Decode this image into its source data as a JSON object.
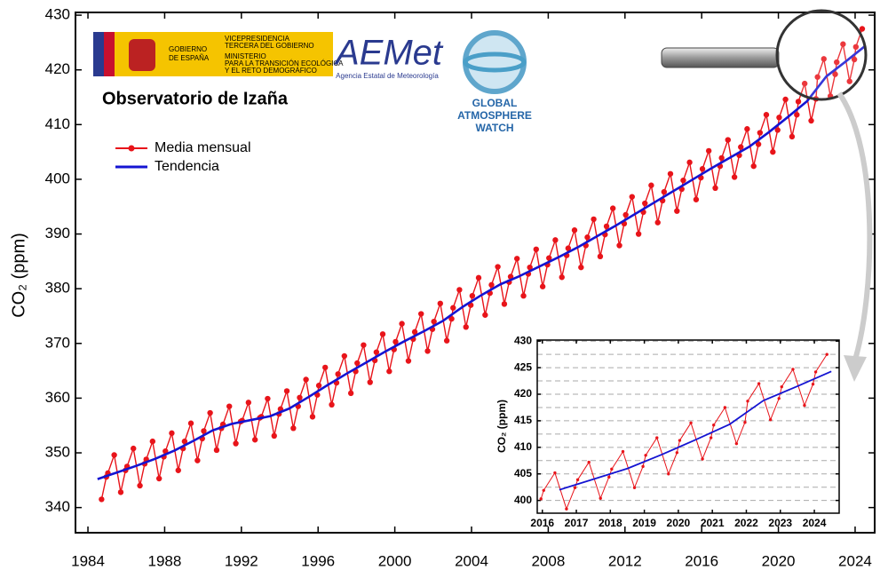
{
  "chart_data": [
    {
      "type": "line",
      "title": "Observatorio de Izaña",
      "ylabel": "CO₂ (ppm)",
      "xlim": [
        1983.35,
        2025.02
      ],
      "ylim": [
        335.4,
        430.5
      ],
      "xticks": [
        1984,
        1988,
        1992,
        1996,
        2000,
        2004,
        2008,
        2012,
        2016,
        2020,
        2024
      ],
      "yticks": [
        340,
        350,
        360,
        370,
        380,
        390,
        400,
        410,
        420,
        430
      ],
      "grid": false,
      "legend": "upper left",
      "series": [
        {
          "name": "Media mensual",
          "color": "#e8141a",
          "markers": true,
          "x": [
            1984.71,
            1984.96,
            1985.04,
            1985.37,
            1985.71,
            1985.96,
            1986.04,
            1986.37,
            1986.71,
            1986.96,
            1987.04,
            1987.37,
            1987.71,
            1987.96,
            1988.04,
            1988.37,
            1988.71,
            1988.96,
            1989.04,
            1989.37,
            1989.71,
            1989.96,
            1990.04,
            1990.37,
            1990.71,
            1990.96,
            1991.04,
            1991.37,
            1991.71,
            1991.96,
            1992.04,
            1992.37,
            1992.71,
            1992.96,
            1993.04,
            1993.37,
            1993.71,
            1993.96,
            1994.04,
            1994.37,
            1994.71,
            1994.96,
            1995.04,
            1995.37,
            1995.71,
            1995.96,
            1996.04,
            1996.37,
            1996.71,
            1996.96,
            1997.04,
            1997.37,
            1997.71,
            1997.96,
            1998.04,
            1998.37,
            1998.71,
            1998.96,
            1999.04,
            1999.37,
            1999.71,
            1999.96,
            2000.04,
            2000.37,
            2000.71,
            2000.96,
            2001.04,
            2001.37,
            2001.71,
            2001.96,
            2002.04,
            2002.37,
            2002.71,
            2002.96,
            2003.04,
            2003.37,
            2003.71,
            2003.96,
            2004.04,
            2004.37,
            2004.71,
            2004.96,
            2005.04,
            2005.37,
            2005.71,
            2005.96,
            2006.04,
            2006.37,
            2006.71,
            2006.96,
            2007.04,
            2007.37,
            2007.71,
            2007.96,
            2008.04,
            2008.37,
            2008.71,
            2008.96,
            2009.04,
            2009.37,
            2009.71,
            2009.96,
            2010.04,
            2010.37,
            2010.71,
            2010.96,
            2011.04,
            2011.37,
            2011.71,
            2011.96,
            2012.04,
            2012.37,
            2012.71,
            2012.96,
            2013.04,
            2013.37,
            2013.71,
            2013.96,
            2014.04,
            2014.37,
            2014.71,
            2014.96,
            2015.04,
            2015.37,
            2015.71,
            2015.96,
            2016.04,
            2016.37,
            2016.71,
            2016.96,
            2017.04,
            2017.37,
            2017.71,
            2017.96,
            2018.04,
            2018.37,
            2018.71,
            2018.96,
            2019.04,
            2019.37,
            2019.71,
            2019.96,
            2020.04,
            2020.37,
            2020.71,
            2020.96,
            2021.04,
            2021.37,
            2021.71,
            2021.96,
            2022.04,
            2022.37,
            2022.71,
            2022.96,
            2023.04,
            2023.37,
            2023.71,
            2023.96,
            2024.04,
            2024.37
          ],
          "values": [
            341.5,
            345.6,
            346.3,
            349.6,
            342.8,
            346.8,
            347.5,
            350.8,
            344.0,
            348.0,
            348.8,
            352.1,
            345.3,
            349.3,
            350.3,
            353.6,
            346.8,
            350.8,
            352.1,
            355.4,
            348.6,
            352.6,
            354.0,
            357.3,
            350.5,
            354.5,
            355.2,
            358.5,
            351.7,
            355.7,
            355.9,
            359.2,
            352.4,
            356.4,
            356.6,
            359.9,
            353.1,
            357.1,
            358.0,
            361.3,
            354.5,
            358.5,
            360.1,
            363.4,
            356.6,
            360.6,
            362.3,
            365.6,
            358.8,
            362.8,
            364.4,
            367.7,
            360.9,
            364.9,
            366.4,
            369.7,
            362.9,
            366.9,
            368.4,
            371.7,
            364.9,
            368.9,
            370.3,
            373.6,
            366.8,
            370.8,
            372.1,
            375.4,
            368.6,
            372.6,
            374.0,
            377.3,
            370.5,
            374.5,
            376.5,
            379.8,
            373.0,
            377.0,
            378.7,
            382.0,
            375.2,
            379.2,
            380.7,
            384.0,
            377.2,
            381.2,
            382.2,
            385.5,
            378.7,
            382.7,
            383.9,
            387.2,
            380.4,
            384.4,
            385.6,
            388.9,
            382.1,
            386.1,
            387.4,
            390.7,
            383.9,
            387.9,
            389.4,
            392.7,
            385.9,
            389.9,
            391.4,
            394.7,
            387.9,
            391.9,
            393.5,
            396.8,
            390.0,
            394.0,
            395.6,
            398.9,
            392.1,
            396.1,
            397.7,
            401.0,
            394.2,
            398.2,
            399.8,
            403.1,
            396.3,
            400.3,
            401.9,
            405.2,
            398.4,
            402.4,
            403.9,
            407.2,
            400.4,
            404.4,
            405.9,
            409.2,
            402.4,
            406.4,
            408.5,
            411.8,
            405.0,
            409.0,
            411.3,
            414.6,
            407.8,
            411.8,
            414.2,
            417.5,
            410.7,
            414.7,
            418.7,
            422.0,
            415.2,
            419.2,
            421.4,
            424.7,
            417.9,
            421.9,
            424.2,
            427.5
          ]
        },
        {
          "name": "Tendencia",
          "color": "#1414d2",
          "markers": false,
          "x": [
            1984.5,
            1985.5,
            1986.5,
            1987.5,
            1988.5,
            1989.5,
            1990.5,
            1991.5,
            1992.5,
            1993.5,
            1994.5,
            1995.5,
            1996.5,
            1997.5,
            1998.5,
            1999.5,
            2000.5,
            2001.5,
            2002.5,
            2003.5,
            2004.5,
            2005.5,
            2006.5,
            2007.5,
            2008.5,
            2009.5,
            2010.5,
            2011.5,
            2012.5,
            2013.5,
            2014.5,
            2015.5,
            2016.5,
            2017.5,
            2018.5,
            2019.5,
            2020.5,
            2021.5,
            2022.5,
            2023.5,
            2024.5
          ],
          "values": [
            345.2,
            346.4,
            347.6,
            348.9,
            350.4,
            352.2,
            354.1,
            355.3,
            356.0,
            356.7,
            358.1,
            360.2,
            362.4,
            364.5,
            366.5,
            368.5,
            370.4,
            372.2,
            374.1,
            376.6,
            378.8,
            380.8,
            382.3,
            384.0,
            385.7,
            387.5,
            389.5,
            391.5,
            393.6,
            395.7,
            397.8,
            399.9,
            402.0,
            404.0,
            406.0,
            408.6,
            411.4,
            414.3,
            418.8,
            421.5,
            424.3
          ]
        }
      ]
    },
    {
      "type": "line",
      "ylabel": "CO₂ (ppm)",
      "xlim": [
        2015.85,
        2024.73
      ],
      "ylim": [
        397.6,
        430.2
      ],
      "xticks": [
        2016,
        2017,
        2018,
        2019,
        2020,
        2021,
        2022,
        2023,
        2024
      ],
      "yticks": [
        400,
        405,
        410,
        415,
        420,
        425,
        430
      ],
      "yminor": [
        402.5,
        407.5,
        412.5,
        417.5,
        422.5,
        427.5
      ],
      "grid": true
    }
  ],
  "logos": {
    "gobierno": [
      "GOBIERNO",
      "DE ESPAÑA"
    ],
    "vicepresidencia": [
      "VICEPRESIDENCIA",
      "TERCERA DEL GOBIERNO"
    ],
    "ministerio": [
      "MINISTERIO",
      "PARA LA TRANSICIÓN ECOLÓGICA",
      "Y EL RETO DEMOGRÁFICO"
    ],
    "aemet": "AEMet",
    "aemet_sub": "Agencia Estatal de Meteorología",
    "gaw": [
      "GLOBAL",
      "ATMOSPHERE",
      "WATCH"
    ]
  }
}
